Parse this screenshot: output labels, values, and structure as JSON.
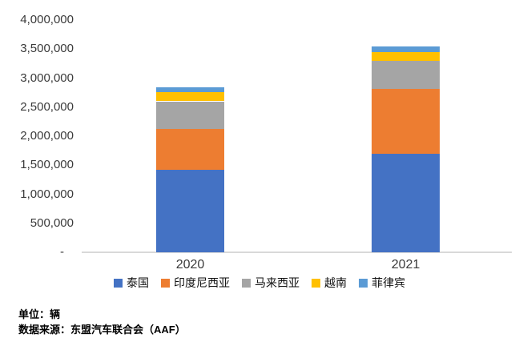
{
  "chart_data": {
    "type": "bar",
    "variant": "stacked-column",
    "title": "",
    "xlabel": "",
    "ylabel": "",
    "categories": [
      "2020",
      "2021"
    ],
    "series": [
      {
        "name": "泰国",
        "color": "#4472C4",
        "values": [
          1420000,
          1690000
        ]
      },
      {
        "name": "印度尼西亚",
        "color": "#ED7D31",
        "values": [
          700000,
          1130000
        ]
      },
      {
        "name": "马来西亚",
        "color": "#A5A5A5",
        "values": [
          480000,
          480000
        ]
      },
      {
        "name": "越南",
        "color": "#FFC000",
        "values": [
          160000,
          155000
        ]
      },
      {
        "name": "菲律宾",
        "color": "#5B9BD5",
        "values": [
          80000,
          85000
        ]
      }
    ],
    "ylim": [
      0,
      4000000
    ],
    "ytick_interval": 500000,
    "ytick_labels": [
      "-",
      "500,000",
      "1,000,000",
      "1,500,000",
      "2,000,000",
      "2,500,000",
      "3,000,000",
      "3,500,000",
      "4,000,000"
    ],
    "grid": false,
    "legend_position": "bottom",
    "axis_line_color": "#D9D9D9"
  },
  "footer": {
    "unit_note": "单位：辆",
    "source_note": "数据来源：东盟汽车联合会（AAF）"
  }
}
